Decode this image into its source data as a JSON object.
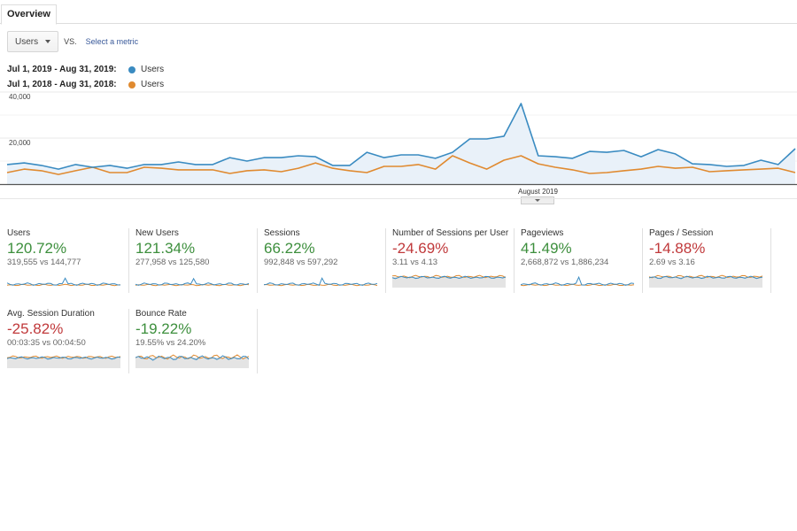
{
  "tabs": [
    {
      "label": "Overview",
      "active": true
    }
  ],
  "metric_selector": {
    "selected": "Users",
    "vs_label": "VS.",
    "select_metric_link": "Select a metric"
  },
  "legend": [
    {
      "date_range": "Jul 1, 2019 - Aug 31, 2019:",
      "metric": "Users",
      "color": "#3a8bc1"
    },
    {
      "date_range": "Jul 1, 2018 - Aug 31, 2018:",
      "metric": "Users",
      "color": "#e08a30"
    }
  ],
  "colors": {
    "current": "#3a8bc1",
    "previous": "#e08a30",
    "fill": "#e9f1f9",
    "positive": "#3d8f3d",
    "negative": "#c0393b"
  },
  "chart_data": {
    "type": "line",
    "title": "",
    "xlabel": "",
    "ylabel": "Users",
    "x_tick_labels": [
      "August 2019"
    ],
    "y_tick_labels": [
      "40,000",
      "20,000"
    ],
    "ylim": [
      0,
      40000
    ],
    "grid": true,
    "legend_position": "top-left",
    "series": [
      {
        "name": "Users (Jul 1, 2019 - Aug 31, 2019)",
        "color": "#3a8bc1",
        "filled": true,
        "values": [
          8500,
          9200,
          8100,
          6500,
          8500,
          7300,
          8100,
          6900,
          8500,
          8500,
          9600,
          8500,
          8500,
          11500,
          10000,
          11500,
          11500,
          12300,
          11900,
          8100,
          8100,
          13800,
          11500,
          12700,
          12700,
          11200,
          13800,
          19600,
          19600,
          20800,
          35000,
          12300,
          11900,
          11200,
          14200,
          13800,
          14600,
          11900,
          15000,
          13100,
          8800,
          8500,
          7700,
          8100,
          10400,
          8500,
          15400
        ]
      },
      {
        "name": "Users (Jul 1, 2018 - Aug 31, 2018)",
        "color": "#e08a30",
        "filled": false,
        "values": [
          5000,
          6500,
          5800,
          4200,
          5800,
          7300,
          5000,
          5000,
          7300,
          6900,
          6200,
          6200,
          6200,
          4600,
          5800,
          6200,
          5400,
          6900,
          9200,
          6900,
          5800,
          5000,
          7700,
          7700,
          8500,
          6500,
          12300,
          9200,
          6500,
          10400,
          12300,
          8800,
          7300,
          6200,
          4600,
          5000,
          5800,
          6500,
          7700,
          6900,
          7300,
          5400,
          5800,
          6200,
          6500,
          6900,
          5000
        ]
      }
    ]
  },
  "scorecards": [
    {
      "title": "Users",
      "change": "120.72%",
      "direction": "up",
      "comparison": "319,555 vs 144,777",
      "spark_style": "line"
    },
    {
      "title": "New Users",
      "change": "121.34%",
      "direction": "up",
      "comparison": "277,958 vs 125,580",
      "spark_style": "line"
    },
    {
      "title": "Sessions",
      "change": "66.22%",
      "direction": "up",
      "comparison": "992,848 vs 597,292",
      "spark_style": "line"
    },
    {
      "title": "Number of Sessions per User",
      "change": "-24.69%",
      "direction": "down",
      "comparison": "3.11 vs 4.13",
      "spark_style": "filled"
    },
    {
      "title": "Pageviews",
      "change": "41.49%",
      "direction": "up",
      "comparison": "2,668,872 vs 1,886,234",
      "spark_style": "line"
    },
    {
      "title": "Pages / Session",
      "change": "-14.88%",
      "direction": "down",
      "comparison": "2.69 vs 3.16",
      "spark_style": "filled"
    },
    {
      "title": "Avg. Session Duration",
      "change": "-25.82%",
      "direction": "down",
      "comparison": "00:03:35 vs 00:04:50",
      "spark_style": "filled"
    },
    {
      "title": "Bounce Rate",
      "change": "-19.22%",
      "direction": "up",
      "comparison": "19.55% vs 24.20%",
      "spark_style": "filled"
    }
  ]
}
